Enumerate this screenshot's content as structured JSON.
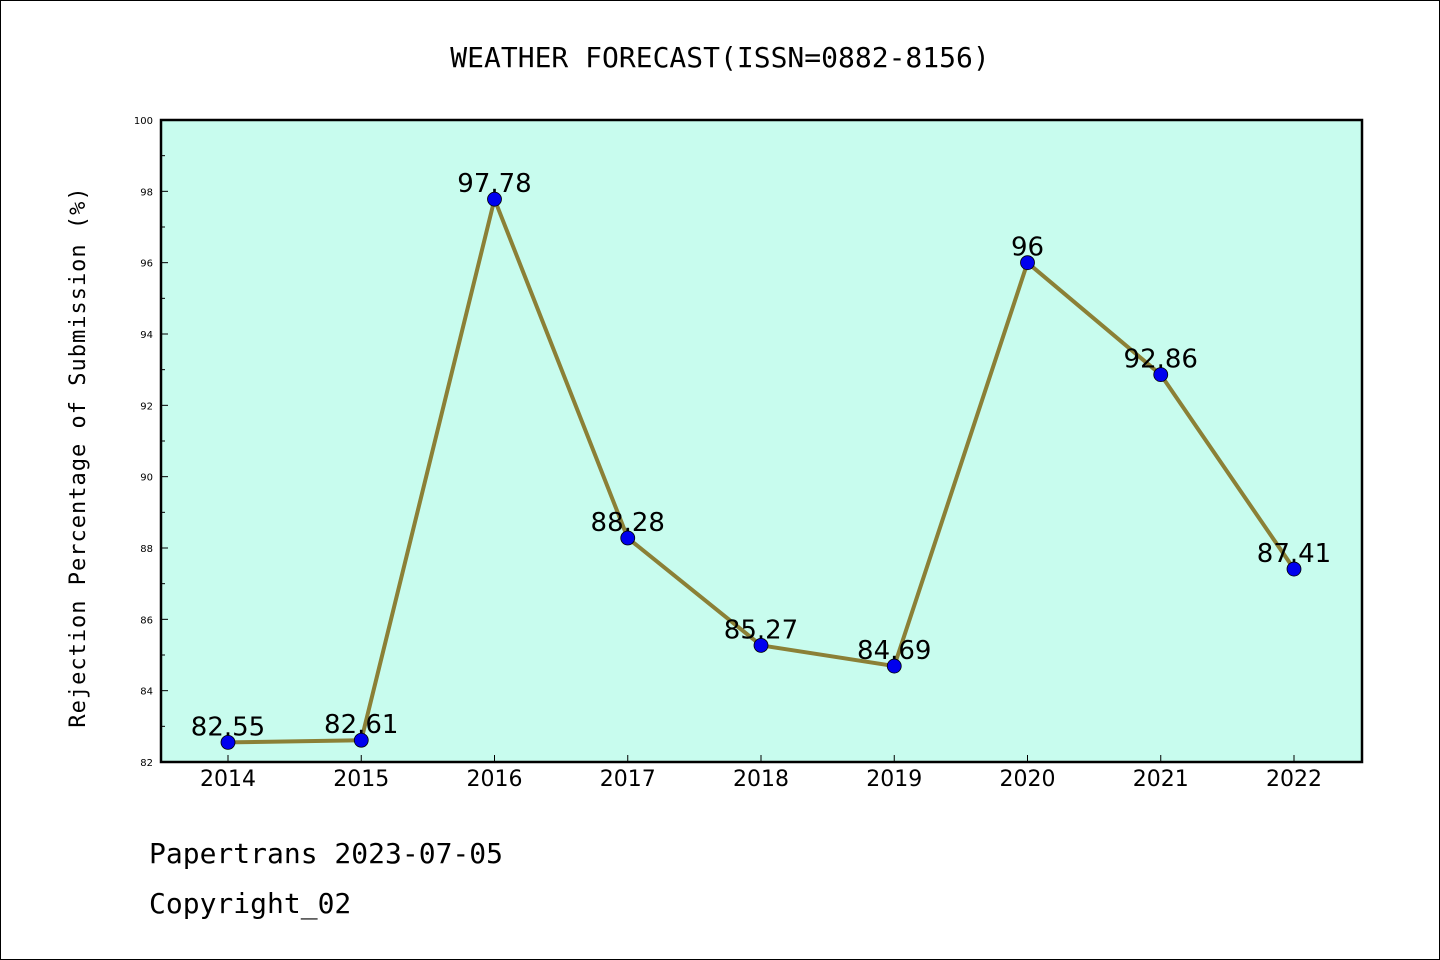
{
  "chart_data": {
    "type": "line",
    "title": "WEATHER FORECAST(ISSN=0882-8156)",
    "xlabel": "",
    "ylabel": "Rejection Percentage of Submission (%)",
    "categories": [
      "2014",
      "2015",
      "2016",
      "2017",
      "2018",
      "2019",
      "2020",
      "2021",
      "2022"
    ],
    "series": [
      {
        "values": [
          82.55,
          82.61,
          97.78,
          88.28,
          85.27,
          84.69,
          96,
          92.86,
          87.41
        ]
      }
    ],
    "data_labels": [
      "82.55",
      "82.61",
      "97.78",
      "88.28",
      "85.27",
      "84.69",
      "96",
      "92.86",
      "87.41"
    ],
    "ylim": [
      82,
      100
    ],
    "yticks": [
      82,
      84,
      86,
      88,
      90,
      92,
      94,
      96,
      98,
      100
    ],
    "ytick_labels": [
      "82",
      "84",
      "86",
      "88",
      "90",
      "92",
      "94",
      "96",
      "98",
      "100"
    ],
    "grid": false,
    "colors": {
      "plot_background": "#c8fcee",
      "line": "#8b8036",
      "marker": "#0000ee"
    }
  },
  "footer": {
    "line1": "Papertrans 2023-07-05",
    "line2": "Copyright_02"
  }
}
